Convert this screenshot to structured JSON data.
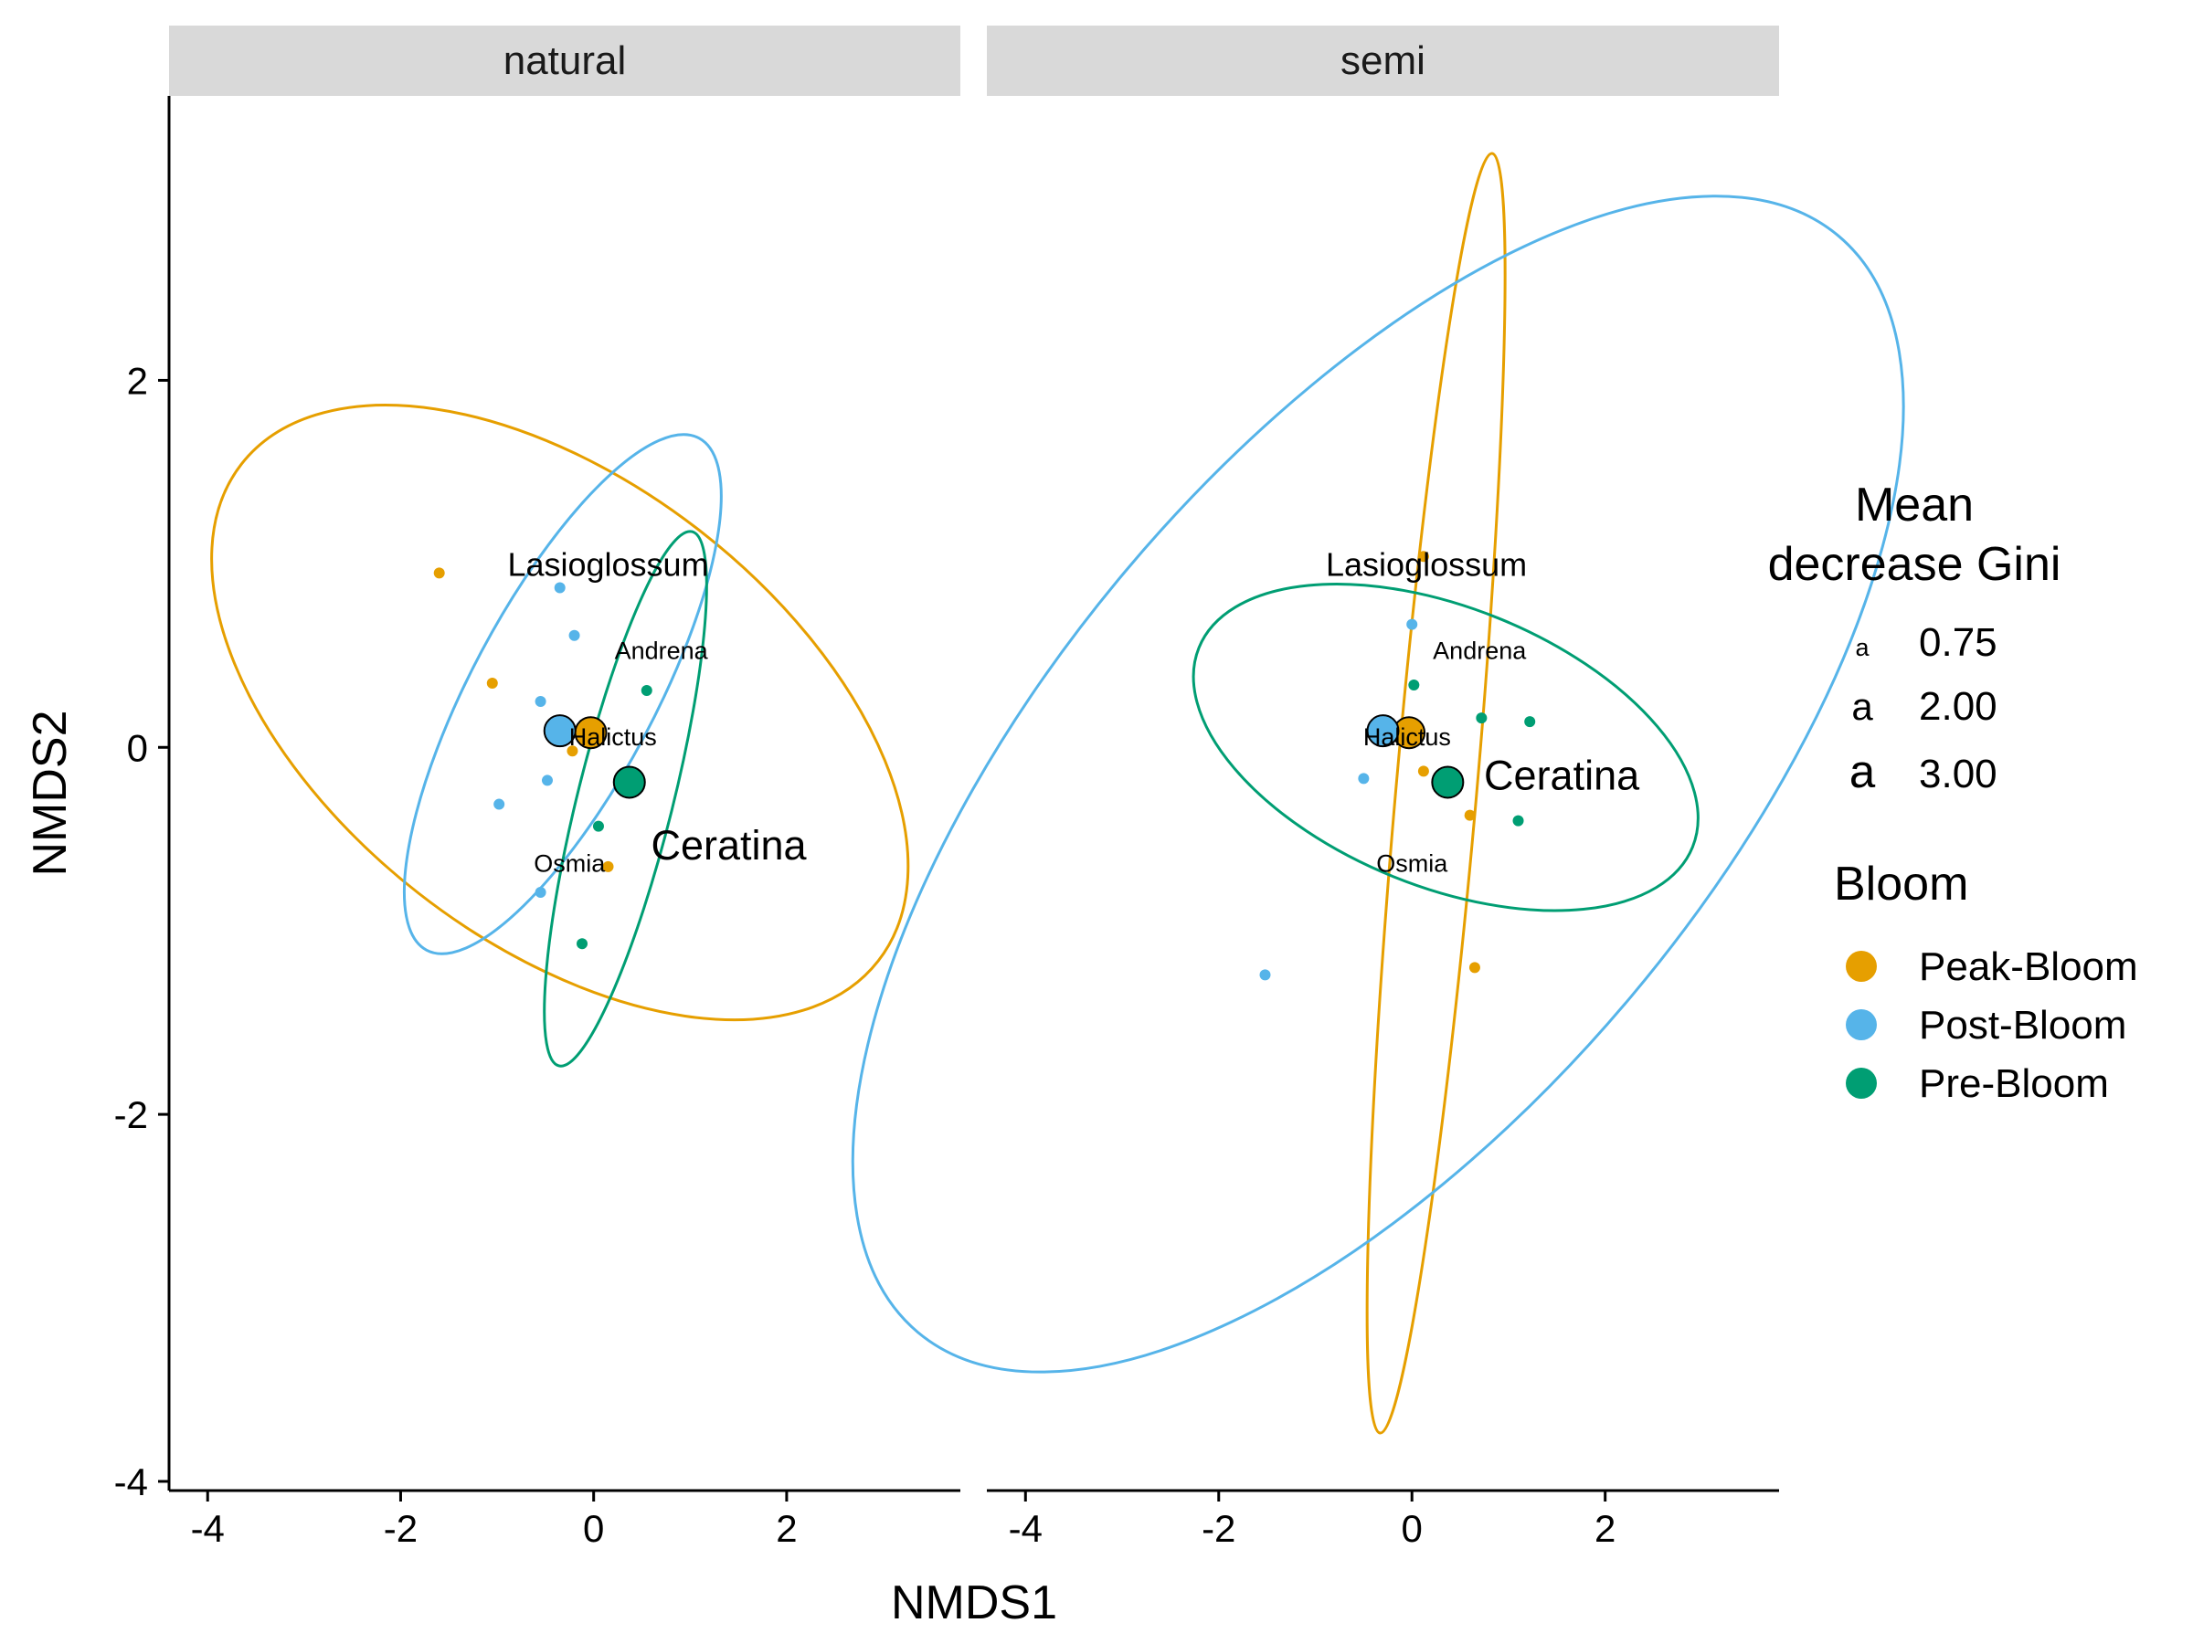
{
  "chart_data": {
    "type": "scatter",
    "subtype": "faceted NMDS ordination with 95% ellipses, group centroids and taxon labels",
    "xlabel": "NMDS1",
    "ylabel": "NMDS2",
    "xlim": [
      -4.4,
      3.8
    ],
    "ylim": [
      -4.05,
      3.55
    ],
    "x_ticks": [
      -4,
      -2,
      0,
      2
    ],
    "y_ticks": [
      -4,
      -2,
      0,
      2
    ],
    "x_tick_labels": [
      "-4",
      "-2",
      "0",
      "2"
    ],
    "y_tick_labels": [
      "-4",
      "-2",
      "0",
      "2"
    ],
    "grid": false,
    "legend_position": "right",
    "colors": {
      "Peak-Bloom": "#E69F00",
      "Post-Bloom": "#56B4E9",
      "Pre-Bloom": "#009E73"
    },
    "legend_size": {
      "title": [
        "Mean",
        "decrease Gini"
      ],
      "glyph": "a",
      "entries": [
        {
          "label": "0.75",
          "value": 0.75
        },
        {
          "label": "2.00",
          "value": 2.0
        },
        {
          "label": "3.00",
          "value": 3.0
        }
      ]
    },
    "legend_color": {
      "title": "Bloom",
      "entries": [
        "Peak-Bloom",
        "Post-Bloom",
        "Pre-Bloom"
      ]
    },
    "facets": [
      {
        "name": "natural",
        "points": [
          {
            "group": "Peak-Bloom",
            "x": -1.6,
            "y": 0.95
          },
          {
            "group": "Peak-Bloom",
            "x": -1.05,
            "y": 0.35
          },
          {
            "group": "Peak-Bloom",
            "x": -0.22,
            "y": -0.02
          },
          {
            "group": "Peak-Bloom",
            "x": 0.15,
            "y": -0.65
          },
          {
            "group": "Post-Bloom",
            "x": -0.35,
            "y": 0.87
          },
          {
            "group": "Post-Bloom",
            "x": -0.2,
            "y": 0.61
          },
          {
            "group": "Post-Bloom",
            "x": -0.55,
            "y": 0.25
          },
          {
            "group": "Post-Bloom",
            "x": -0.48,
            "y": -0.18
          },
          {
            "group": "Post-Bloom",
            "x": -0.98,
            "y": -0.31
          },
          {
            "group": "Post-Bloom",
            "x": -0.55,
            "y": -0.79
          },
          {
            "group": "Pre-Bloom",
            "x": 0.55,
            "y": 0.31
          },
          {
            "group": "Pre-Bloom",
            "x": 0.05,
            "y": -0.43
          },
          {
            "group": "Pre-Bloom",
            "x": -0.12,
            "y": -1.07
          }
        ],
        "centroids": [
          {
            "group": "Peak-Bloom",
            "x": -0.03,
            "y": 0.08
          },
          {
            "group": "Post-Bloom",
            "x": -0.35,
            "y": 0.09
          },
          {
            "group": "Pre-Bloom",
            "x": 0.37,
            "y": -0.19
          }
        ],
        "ellipses": [
          {
            "group": "Peak-Bloom",
            "cx": -0.35,
            "cy": 0.19,
            "a": 2.2,
            "b": 1.25,
            "angle": -38
          },
          {
            "group": "Post-Bloom",
            "cx": -0.32,
            "cy": 0.29,
            "a": 1.58,
            "b": 0.5,
            "angle": 62
          },
          {
            "group": "Pre-Bloom",
            "cx": 0.33,
            "cy": -0.28,
            "a": 1.5,
            "b": 0.26,
            "angle": 76
          }
        ],
        "labels": [
          {
            "text": "Lasioglossum",
            "x": 0.15,
            "y": 1.0,
            "gini": 2.0
          },
          {
            "text": "Andrena",
            "x": 0.7,
            "y": 0.53,
            "gini": 0.75
          },
          {
            "text": "Halictus",
            "x": 0.2,
            "y": 0.06,
            "gini": 0.75
          },
          {
            "text": "Ceratina",
            "x": 1.4,
            "y": -0.53,
            "gini": 3.0
          },
          {
            "text": "Osmia",
            "x": -0.25,
            "y": -0.63,
            "gini": 0.75
          }
        ]
      },
      {
        "name": "semi",
        "points": [
          {
            "group": "Peak-Bloom",
            "x": 0.12,
            "y": 1.04
          },
          {
            "group": "Peak-Bloom",
            "x": 0.12,
            "y": -0.13
          },
          {
            "group": "Peak-Bloom",
            "x": 0.6,
            "y": -0.37
          },
          {
            "group": "Peak-Bloom",
            "x": 0.65,
            "y": -1.2
          },
          {
            "group": "Post-Bloom",
            "x": 0.0,
            "y": 0.67
          },
          {
            "group": "Post-Bloom",
            "x": -0.5,
            "y": -0.17
          },
          {
            "group": "Post-Bloom",
            "x": -1.52,
            "y": -1.24
          },
          {
            "group": "Pre-Bloom",
            "x": 0.02,
            "y": 0.34
          },
          {
            "group": "Pre-Bloom",
            "x": 0.72,
            "y": 0.16
          },
          {
            "group": "Pre-Bloom",
            "x": 1.22,
            "y": 0.14
          },
          {
            "group": "Pre-Bloom",
            "x": 1.1,
            "y": -0.4
          }
        ],
        "centroids": [
          {
            "group": "Peak-Bloom",
            "x": -0.03,
            "y": 0.08
          },
          {
            "group": "Post-Bloom",
            "x": -0.3,
            "y": 0.09
          },
          {
            "group": "Pre-Bloom",
            "x": 0.37,
            "y": -0.19
          }
        ],
        "ellipses": [
          {
            "group": "Peak-Bloom",
            "cx": 0.25,
            "cy": -0.25,
            "a": 3.5,
            "b": 0.22,
            "angle": 85
          },
          {
            "group": "Post-Bloom",
            "cx": -0.35,
            "cy": -0.2,
            "a": 3.9,
            "b": 1.8,
            "angle": 50
          },
          {
            "group": "Pre-Bloom",
            "cx": 0.35,
            "cy": 0.0,
            "a": 1.45,
            "b": 0.76,
            "angle": -22
          }
        ],
        "labels": [
          {
            "text": "Lasioglossum",
            "x": 0.15,
            "y": 1.0,
            "gini": 2.0
          },
          {
            "text": "Andrena",
            "x": 0.7,
            "y": 0.53,
            "gini": 0.75
          },
          {
            "text": "Halictus",
            "x": -0.05,
            "y": 0.06,
            "gini": 0.75
          },
          {
            "text": "Ceratina",
            "x": 1.55,
            "y": -0.15,
            "gini": 3.0
          },
          {
            "text": "Osmia",
            "x": 0.0,
            "y": -0.63,
            "gini": 0.75
          }
        ]
      }
    ]
  }
}
